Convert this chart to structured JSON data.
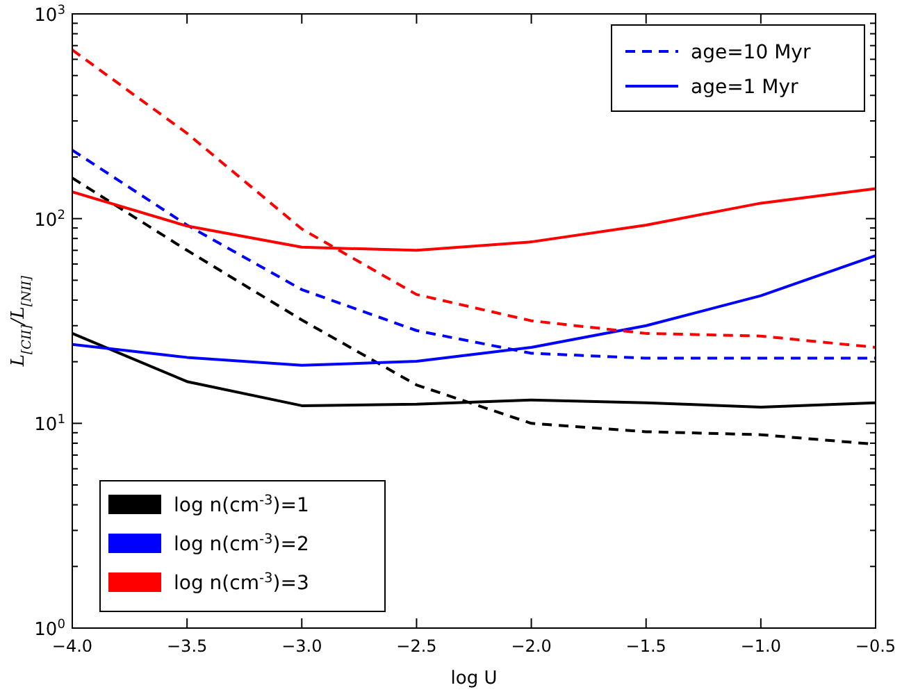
{
  "chart_data": {
    "type": "line",
    "xlabel": "log U",
    "ylabel": "L$_{[CII]}$/L$_{[NII]}$",
    "log": "y",
    "grid": false,
    "x": [
      -4,
      -3.5,
      -3,
      -2.5,
      -2,
      -1.5,
      -1,
      -0.5
    ],
    "xlim": [
      -4,
      -0.5
    ],
    "xticks": [
      {
        "value": -4,
        "label": "−4.0"
      },
      {
        "value": -3.5,
        "label": "−3.5"
      },
      {
        "value": -3,
        "label": "−3.0"
      },
      {
        "value": -2.5,
        "label": "−2.5"
      },
      {
        "value": -2,
        "label": "−2.0"
      },
      {
        "value": -1.5,
        "label": "−1.5"
      },
      {
        "value": -1,
        "label": "−1.0"
      },
      {
        "value": -0.5,
        "label": "−0.5"
      }
    ],
    "ylim": [
      1,
      1000
    ],
    "yticks": [
      {
        "value": 1,
        "label": "10$^{0}$"
      },
      {
        "value": 10,
        "label": "10$^{1}$"
      },
      {
        "value": 100,
        "label": "10$^{2}$"
      },
      {
        "value": 1000,
        "label": "10$^{3}$"
      }
    ],
    "series": [
      {
        "color": "#000000",
        "line_style": "solid",
        "values": [
          27.5,
          16,
          12.2,
          12.4,
          13,
          12.6,
          12,
          12.6
        ]
      },
      {
        "color": "#000000",
        "line_style": "dashed",
        "values": [
          158,
          70,
          32,
          15.4,
          10,
          9.1,
          8.8,
          7.9
        ]
      },
      {
        "color": "#0000ff",
        "line_style": "solid",
        "values": [
          24.3,
          21,
          19.2,
          20.1,
          23.5,
          30,
          42,
          66
        ]
      },
      {
        "color": "#0000ff",
        "line_style": "dashed",
        "values": [
          216,
          93,
          45,
          28.4,
          22,
          20.8,
          20.8,
          20.8
        ]
      },
      {
        "color": "#ff0000",
        "line_style": "solid",
        "values": [
          135,
          92,
          72.5,
          70,
          77,
          93,
          119,
          140
        ]
      },
      {
        "color": "#ff0000",
        "line_style": "dashed",
        "values": [
          667,
          261,
          89,
          42.6,
          31.7,
          27.5,
          26.7,
          23.5
        ]
      }
    ],
    "annotations": [
      "age=10 Myr",
      "age=1 Myr",
      "log n(cm$^{-3}$)=1",
      "log n(cm$^{-3}$)=2",
      "log n(cm$^{-3}$)=3"
    ]
  }
}
